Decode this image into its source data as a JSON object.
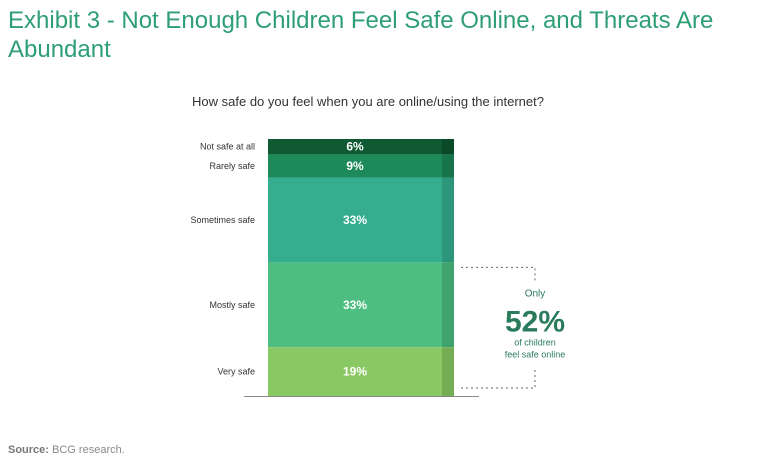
{
  "page": {
    "title": "Exhibit 3 - Not Enough Children Feel Safe Online, and Threats Are Abundant",
    "source_label": "Source:",
    "source_text": "BCG research."
  },
  "chart_data": {
    "type": "bar",
    "stacked": true,
    "title": "How safe do you feel when you are online/using the internet?",
    "categories": [
      "Not safe at all",
      "Rarely safe",
      "Sometimes safe",
      "Mostly safe",
      "Very safe"
    ],
    "values": [
      6,
      9,
      33,
      33,
      19
    ],
    "value_labels": [
      "6%",
      "9%",
      "33%",
      "33%",
      "19%"
    ],
    "colors": [
      "#0f5a32",
      "#1e8a5a",
      "#36ad8e",
      "#4dbd80",
      "#8ac864"
    ],
    "side_colors": [
      "#0b4a28",
      "#18754b",
      "#2d957a",
      "#40a36d",
      "#74ad54"
    ],
    "callout": {
      "line1": "Only",
      "value": "52%",
      "line2": "of children",
      "line3": "feel safe online",
      "bracket_covers": [
        "Mostly safe",
        "Very safe"
      ]
    },
    "axis_color": "#888888",
    "callout_color": "#2a7a5c"
  }
}
